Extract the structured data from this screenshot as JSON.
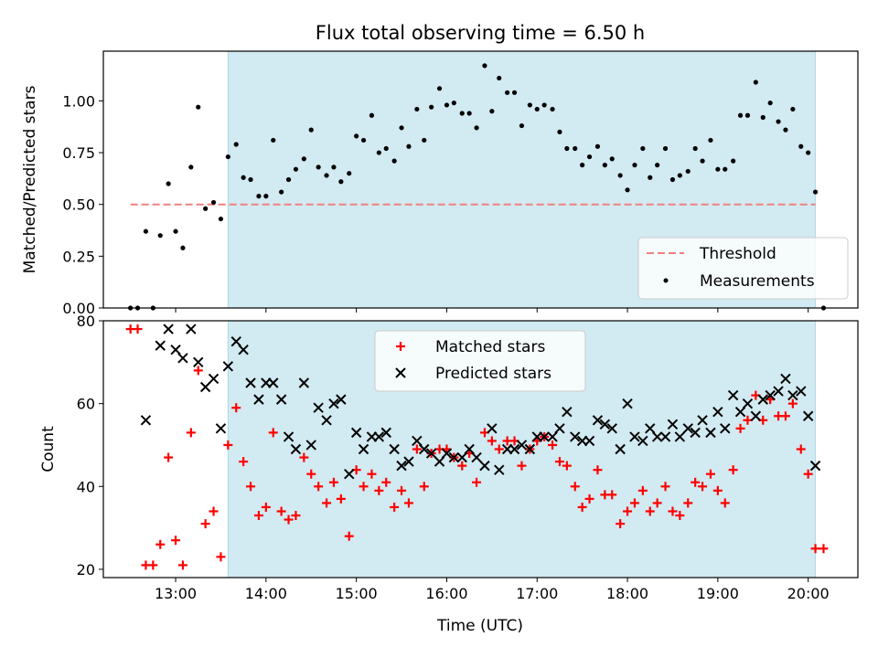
{
  "title": "Flux total observing time = 6.50 h",
  "chart_data": [
    {
      "type": "scatter",
      "title": "Flux total observing time = 6.50 h",
      "ylabel": "Matched/Predicted stars",
      "xlim": [
        12.2,
        20.55
      ],
      "ylim": [
        0,
        1.24
      ],
      "yticks": [
        0,
        0.25,
        0.5,
        0.75,
        1.0
      ],
      "ytick_labels": [
        "0.00",
        "0.25",
        "0.50",
        "0.75",
        "1.00"
      ],
      "shaded_span": [
        13.58,
        20.08
      ],
      "shade_color": "#add8e6",
      "threshold": {
        "name": "Threshold",
        "value": 0.5,
        "x": [
          12.5,
          20.08
        ],
        "color": "#f08080"
      },
      "legend": {
        "position": "lower right",
        "entries": [
          "Threshold",
          "Measurements"
        ]
      },
      "series": [
        {
          "name": "Measurements",
          "color": "#000000",
          "x": [
            12.5,
            12.58,
            12.67,
            12.75,
            12.83,
            12.92,
            13.0,
            13.08,
            13.17,
            13.25,
            13.33,
            13.42,
            13.5,
            13.58,
            13.67,
            13.75,
            13.83,
            13.92,
            14.0,
            14.08,
            14.17,
            14.25,
            14.33,
            14.42,
            14.5,
            14.58,
            14.67,
            14.75,
            14.83,
            14.92,
            15.0,
            15.08,
            15.17,
            15.25,
            15.33,
            15.42,
            15.5,
            15.58,
            15.67,
            15.75,
            15.83,
            15.92,
            16.0,
            16.08,
            16.17,
            16.25,
            16.33,
            16.42,
            16.5,
            16.58,
            16.67,
            16.75,
            16.83,
            16.92,
            17.0,
            17.08,
            17.17,
            17.25,
            17.33,
            17.42,
            17.5,
            17.58,
            17.67,
            17.75,
            17.83,
            17.92,
            18.0,
            18.08,
            18.17,
            18.25,
            18.33,
            18.42,
            18.5,
            18.58,
            18.67,
            18.75,
            18.83,
            18.92,
            19.0,
            19.08,
            19.17,
            19.25,
            19.33,
            19.42,
            19.5,
            19.58,
            19.67,
            19.75,
            19.83,
            19.92,
            20.0,
            20.08,
            20.17
          ],
          "y": [
            0.0,
            0.0,
            0.37,
            0.0,
            0.35,
            0.6,
            0.37,
            0.29,
            0.68,
            0.97,
            0.48,
            0.51,
            0.43,
            0.73,
            0.79,
            0.63,
            0.62,
            0.54,
            0.54,
            0.81,
            0.56,
            0.62,
            0.67,
            0.72,
            0.86,
            0.68,
            0.64,
            0.68,
            0.61,
            0.65,
            0.83,
            0.81,
            0.93,
            0.75,
            0.77,
            0.71,
            0.87,
            0.78,
            0.96,
            0.81,
            0.97,
            1.06,
            0.98,
            0.99,
            0.94,
            0.94,
            0.87,
            1.17,
            0.95,
            1.11,
            1.04,
            1.04,
            0.88,
            0.98,
            0.96,
            0.98,
            0.96,
            0.85,
            0.77,
            0.77,
            0.69,
            0.73,
            0.78,
            0.69,
            0.72,
            0.64,
            0.57,
            0.69,
            0.77,
            0.63,
            0.69,
            0.77,
            0.62,
            0.64,
            0.66,
            0.77,
            0.71,
            0.81,
            0.67,
            0.67,
            0.71,
            0.93,
            0.93,
            1.09,
            0.92,
            0.99,
            0.9,
            0.86,
            0.96,
            0.78,
            0.75,
            0.56,
            0.0
          ]
        }
      ]
    },
    {
      "type": "scatter",
      "xlabel": "Time (UTC)",
      "ylabel": "Count",
      "xlim": [
        12.2,
        20.55
      ],
      "ylim": [
        18,
        80
      ],
      "yticks": [
        20,
        40,
        60,
        80
      ],
      "ytick_labels": [
        "20",
        "40",
        "60",
        "80"
      ],
      "xticks": [
        13,
        14,
        15,
        16,
        17,
        18,
        19,
        20
      ],
      "xtick_labels": [
        "13:00",
        "14:00",
        "15:00",
        "16:00",
        "17:00",
        "18:00",
        "19:00",
        "20:00"
      ],
      "shaded_span": [
        13.58,
        20.08
      ],
      "shade_color": "#add8e6",
      "legend": {
        "position": "upper center",
        "entries": [
          "Matched stars",
          "Predicted stars"
        ]
      },
      "series": [
        {
          "name": "Matched stars",
          "marker": "plus",
          "color": "#ff0000",
          "x": [
            12.5,
            12.58,
            12.67,
            12.75,
            12.83,
            12.92,
            13.0,
            13.08,
            13.17,
            13.25,
            13.33,
            13.42,
            13.5,
            13.58,
            13.67,
            13.75,
            13.83,
            13.92,
            14.0,
            14.08,
            14.17,
            14.25,
            14.33,
            14.42,
            14.5,
            14.58,
            14.67,
            14.75,
            14.83,
            14.92,
            15.0,
            15.08,
            15.17,
            15.25,
            15.33,
            15.42,
            15.5,
            15.58,
            15.67,
            15.75,
            15.83,
            15.92,
            16.0,
            16.08,
            16.17,
            16.25,
            16.33,
            16.42,
            16.5,
            16.58,
            16.67,
            16.75,
            16.83,
            16.92,
            17.0,
            17.08,
            17.17,
            17.25,
            17.33,
            17.42,
            17.5,
            17.58,
            17.67,
            17.75,
            17.83,
            17.92,
            18.0,
            18.08,
            18.17,
            18.25,
            18.33,
            18.42,
            18.5,
            18.58,
            18.67,
            18.75,
            18.83,
            18.92,
            19.0,
            19.08,
            19.17,
            19.25,
            19.33,
            19.42,
            19.5,
            19.58,
            19.67,
            19.75,
            19.83,
            19.92,
            20.0,
            20.08,
            20.17
          ],
          "y": [
            78,
            78,
            21,
            21,
            26,
            47,
            27,
            21,
            53,
            68,
            31,
            34,
            23,
            50,
            59,
            46,
            40,
            33,
            35,
            53,
            34,
            32,
            33,
            47,
            43,
            40,
            36,
            41,
            37,
            28,
            44,
            40,
            43,
            39,
            41,
            35,
            39,
            36,
            49,
            40,
            48,
            49,
            49,
            47,
            45,
            48,
            41,
            53,
            51,
            49,
            51,
            51,
            45,
            49,
            51,
            52,
            50,
            46,
            45,
            40,
            35,
            37,
            44,
            38,
            38,
            31,
            34,
            36,
            39,
            34,
            36,
            40,
            34,
            33,
            36,
            41,
            40,
            43,
            39,
            36,
            44,
            54,
            56,
            62,
            56,
            61,
            57,
            57,
            60,
            49,
            43,
            25,
            25
          ]
        },
        {
          "name": "Predicted stars",
          "marker": "x",
          "color": "#000000",
          "x": [
            12.67,
            12.83,
            12.92,
            13.0,
            13.08,
            13.17,
            13.25,
            13.33,
            13.42,
            13.5,
            13.58,
            13.67,
            13.75,
            13.83,
            13.92,
            14.0,
            14.08,
            14.17,
            14.25,
            14.33,
            14.42,
            14.5,
            14.58,
            14.67,
            14.75,
            14.83,
            14.92,
            15.0,
            15.08,
            15.17,
            15.25,
            15.33,
            15.42,
            15.5,
            15.58,
            15.67,
            15.75,
            15.83,
            15.92,
            16.0,
            16.08,
            16.17,
            16.25,
            16.33,
            16.42,
            16.5,
            16.58,
            16.67,
            16.75,
            16.83,
            16.92,
            17.0,
            17.08,
            17.17,
            17.25,
            17.33,
            17.42,
            17.5,
            17.58,
            17.67,
            17.75,
            17.83,
            17.92,
            18.0,
            18.08,
            18.17,
            18.25,
            18.33,
            18.42,
            18.5,
            18.58,
            18.67,
            18.75,
            18.83,
            18.92,
            19.0,
            19.08,
            19.17,
            19.25,
            19.33,
            19.42,
            19.5,
            19.58,
            19.67,
            19.75,
            19.83,
            19.92,
            20.0,
            20.08
          ],
          "y": [
            56,
            74,
            78,
            73,
            71,
            78,
            70,
            64,
            66,
            54,
            69,
            75,
            73,
            65,
            61,
            65,
            65,
            61,
            52,
            49,
            65,
            50,
            59,
            56,
            60,
            61,
            43,
            53,
            49,
            52,
            52,
            53,
            49,
            45,
            46,
            51,
            49,
            48,
            46,
            48,
            47,
            47,
            49,
            47,
            45,
            54,
            44,
            49,
            49,
            50,
            49,
            52,
            52,
            52,
            54,
            58,
            52,
            51,
            51,
            56,
            55,
            54,
            49,
            60,
            52,
            51,
            54,
            52,
            52,
            55,
            52,
            54,
            53,
            56,
            53,
            58,
            54,
            62,
            58,
            60,
            57,
            61,
            62,
            63,
            66,
            62,
            63,
            57,
            45
          ]
        }
      ]
    }
  ]
}
